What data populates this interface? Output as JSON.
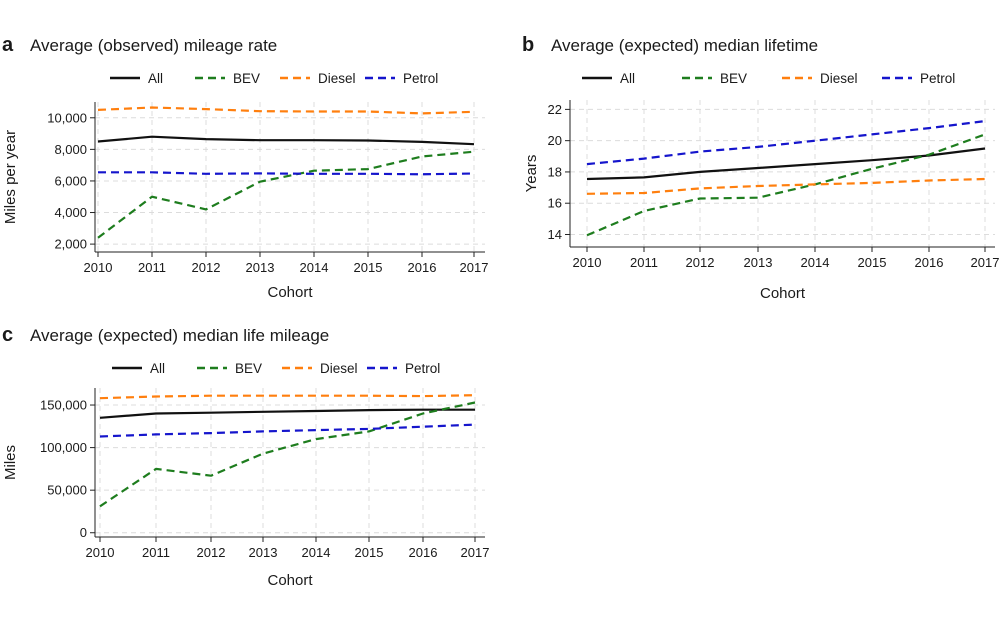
{
  "chart_data": [
    {
      "type": "line",
      "panel": "a",
      "title": "Average (observed) mileage rate",
      "xlabel": "Cohort",
      "ylabel": "Miles per year",
      "x": [
        2010,
        2011,
        2012,
        2013,
        2014,
        2015,
        2016,
        2017
      ],
      "ylim": [
        1500,
        11000
      ],
      "yticks": [
        2000,
        4000,
        6000,
        8000,
        10000
      ],
      "ytick_labels": [
        "2,000",
        "4,000",
        "6,000",
        "8,000",
        "10,000"
      ],
      "legend_position": "top",
      "grid": true,
      "series": [
        {
          "name": "All",
          "style": "solid",
          "color": "#111111",
          "values": [
            8500,
            8800,
            8650,
            8580,
            8580,
            8560,
            8470,
            8330
          ]
        },
        {
          "name": "BEV",
          "style": "dashed",
          "color": "#1e7d1e",
          "values": [
            2400,
            5000,
            4200,
            5950,
            6650,
            6750,
            7550,
            7850
          ]
        },
        {
          "name": "Diesel",
          "style": "dashed",
          "color": "#ff7f0e",
          "values": [
            10500,
            10650,
            10550,
            10420,
            10400,
            10400,
            10280,
            10380
          ]
        },
        {
          "name": "Petrol",
          "style": "dashed",
          "color": "#1515cc",
          "values": [
            6550,
            6550,
            6450,
            6480,
            6450,
            6450,
            6420,
            6470
          ]
        }
      ]
    },
    {
      "type": "line",
      "panel": "b",
      "title": "Average (expected) median lifetime",
      "xlabel": "Cohort",
      "ylabel": "Years",
      "x": [
        2010,
        2011,
        2012,
        2013,
        2014,
        2015,
        2016,
        2017
      ],
      "ylim": [
        13.2,
        22.6
      ],
      "yticks": [
        14,
        16,
        18,
        20,
        22
      ],
      "ytick_labels": [
        "14",
        "16",
        "18",
        "20",
        "22"
      ],
      "legend_position": "top",
      "grid": true,
      "series": [
        {
          "name": "All",
          "style": "solid",
          "color": "#111111",
          "values": [
            17.55,
            17.65,
            18.0,
            18.25,
            18.5,
            18.75,
            19.05,
            19.5
          ]
        },
        {
          "name": "BEV",
          "style": "dashed",
          "color": "#1e7d1e",
          "values": [
            13.95,
            15.5,
            16.3,
            16.35,
            17.2,
            18.2,
            19.1,
            20.4
          ]
        },
        {
          "name": "Diesel",
          "style": "dashed",
          "color": "#ff7f0e",
          "values": [
            16.6,
            16.65,
            16.95,
            17.1,
            17.2,
            17.3,
            17.45,
            17.55
          ]
        },
        {
          "name": "Petrol",
          "style": "dashed",
          "color": "#1515cc",
          "values": [
            18.5,
            18.85,
            19.3,
            19.6,
            20.0,
            20.4,
            20.8,
            21.25
          ]
        }
      ]
    },
    {
      "type": "line",
      "panel": "c",
      "title": "Average (expected) median life mileage",
      "xlabel": "Cohort",
      "ylabel": "Miles",
      "x": [
        2010,
        2011,
        2012,
        2013,
        2014,
        2015,
        2016,
        2017
      ],
      "ylim": [
        -5000,
        170000
      ],
      "yticks": [
        0,
        50000,
        100000,
        150000
      ],
      "ytick_labels": [
        "0",
        "50,000",
        "100,000",
        "150,000"
      ],
      "legend_position": "top",
      "grid": true,
      "series": [
        {
          "name": "All",
          "style": "solid",
          "color": "#111111",
          "values": [
            135000,
            140000,
            141000,
            142000,
            143000,
            144000,
            144500,
            144500
          ]
        },
        {
          "name": "BEV",
          "style": "dashed",
          "color": "#1e7d1e",
          "values": [
            31000,
            75000,
            67000,
            93000,
            110000,
            119000,
            140000,
            153000
          ]
        },
        {
          "name": "Diesel",
          "style": "dashed",
          "color": "#ff7f0e",
          "values": [
            158000,
            160000,
            161000,
            161000,
            161000,
            161000,
            160500,
            161500
          ]
        },
        {
          "name": "Petrol",
          "style": "dashed",
          "color": "#1515cc",
          "values": [
            113000,
            115500,
            117000,
            119000,
            120500,
            122000,
            124500,
            127000
          ]
        }
      ]
    }
  ]
}
